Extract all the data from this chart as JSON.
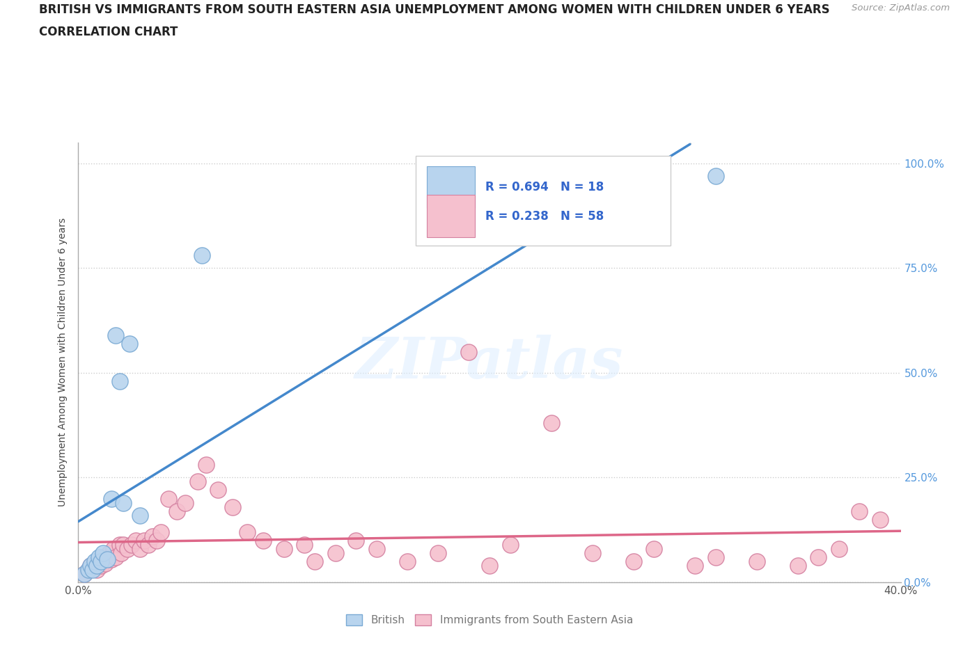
{
  "title_line1": "BRITISH VS IMMIGRANTS FROM SOUTH EASTERN ASIA UNEMPLOYMENT AMONG WOMEN WITH CHILDREN UNDER 6 YEARS",
  "title_line2": "CORRELATION CHART",
  "source": "Source: ZipAtlas.com",
  "ylabel": "Unemployment Among Women with Children Under 6 years",
  "xlim": [
    0.0,
    0.4
  ],
  "ylim": [
    0.0,
    1.05
  ],
  "british_color": "#b8d4ee",
  "british_edge": "#7aaad4",
  "immigrant_color": "#f5c0ce",
  "immigrant_edge": "#d480a0",
  "british_line_color": "#4488cc",
  "immigrant_line_color": "#dd6688",
  "watermark_text": "ZIPatlas",
  "R_british": 0.694,
  "N_british": 18,
  "R_immigrant": 0.238,
  "N_immigrant": 58,
  "british_x": [
    0.003,
    0.005,
    0.006,
    0.007,
    0.008,
    0.009,
    0.01,
    0.011,
    0.012,
    0.014,
    0.016,
    0.018,
    0.02,
    0.022,
    0.025,
    0.03,
    0.06,
    0.31
  ],
  "british_y": [
    0.02,
    0.03,
    0.04,
    0.03,
    0.05,
    0.04,
    0.06,
    0.05,
    0.07,
    0.055,
    0.2,
    0.59,
    0.48,
    0.19,
    0.57,
    0.16,
    0.78,
    0.97
  ],
  "immigrant_x": [
    0.003,
    0.005,
    0.006,
    0.007,
    0.008,
    0.009,
    0.01,
    0.011,
    0.012,
    0.013,
    0.015,
    0.016,
    0.017,
    0.018,
    0.02,
    0.021,
    0.022,
    0.024,
    0.026,
    0.028,
    0.03,
    0.032,
    0.034,
    0.036,
    0.038,
    0.04,
    0.044,
    0.048,
    0.052,
    0.058,
    0.062,
    0.068,
    0.075,
    0.082,
    0.09,
    0.1,
    0.11,
    0.115,
    0.125,
    0.135,
    0.145,
    0.16,
    0.175,
    0.19,
    0.2,
    0.21,
    0.23,
    0.25,
    0.27,
    0.28,
    0.3,
    0.31,
    0.33,
    0.35,
    0.36,
    0.37,
    0.38,
    0.39
  ],
  "immigrant_y": [
    0.02,
    0.03,
    0.04,
    0.035,
    0.04,
    0.03,
    0.05,
    0.04,
    0.06,
    0.045,
    0.07,
    0.055,
    0.08,
    0.06,
    0.09,
    0.07,
    0.09,
    0.08,
    0.09,
    0.1,
    0.08,
    0.1,
    0.09,
    0.11,
    0.1,
    0.12,
    0.2,
    0.17,
    0.19,
    0.24,
    0.28,
    0.22,
    0.18,
    0.12,
    0.1,
    0.08,
    0.09,
    0.05,
    0.07,
    0.1,
    0.08,
    0.05,
    0.07,
    0.55,
    0.04,
    0.09,
    0.38,
    0.07,
    0.05,
    0.08,
    0.04,
    0.06,
    0.05,
    0.04,
    0.06,
    0.08,
    0.17,
    0.15
  ]
}
